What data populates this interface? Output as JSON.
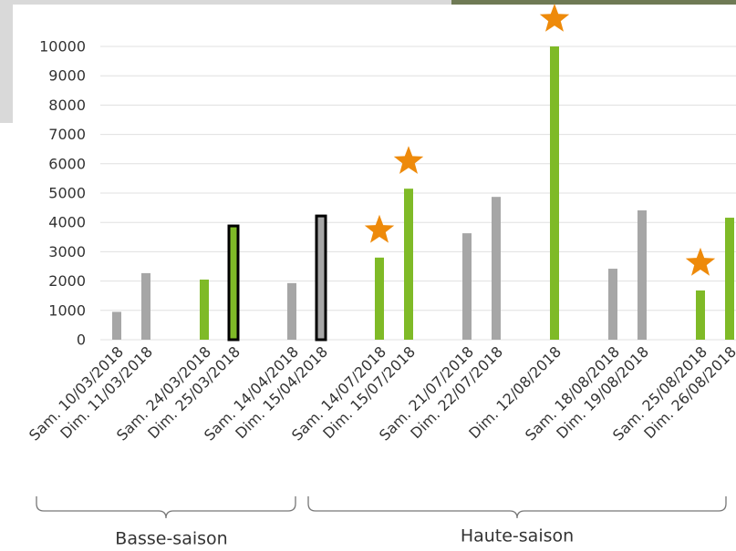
{
  "chart_data": {
    "type": "bar",
    "categories": [
      "Sam. 10/03/2018",
      "Dim. 11/03/2018",
      null,
      "Sam. 24/03/2018",
      "Dim. 25/03/2018",
      null,
      "Sam. 14/04/2018",
      "Dim. 15/04/2018",
      null,
      "Sam. 14/07/2018",
      "Dim. 15/07/2018",
      null,
      "Sam. 21/07/2018",
      "Dim. 22/07/2018",
      null,
      "Dim. 12/08/2018",
      null,
      "Sam. 18/08/2018",
      "Dim. 19/08/2018",
      null,
      "Sam. 25/08/2018",
      "Dim. 26/08/2018"
    ],
    "values": [
      950,
      2270,
      null,
      2050,
      3880,
      null,
      1930,
      4220,
      null,
      2800,
      5150,
      null,
      3630,
      4870,
      null,
      10000,
      null,
      2420,
      4410,
      null,
      1680,
      4160
    ],
    "colors": [
      "#a6a6a6",
      "#a6a6a6",
      null,
      "#7fba27",
      "#7fba27",
      null,
      "#a6a6a6",
      "#a6a6a6",
      null,
      "#7fba27",
      "#7fba27",
      null,
      "#a6a6a6",
      "#a6a6a6",
      null,
      "#7fba27",
      null,
      "#a6a6a6",
      "#a6a6a6",
      null,
      "#7fba27",
      "#7fba27"
    ],
    "outlined": [
      false,
      false,
      false,
      false,
      true,
      false,
      false,
      true,
      false,
      false,
      false,
      false,
      false,
      false,
      false,
      false,
      false,
      false,
      false,
      false,
      false,
      false
    ],
    "starred": [
      false,
      false,
      false,
      false,
      false,
      false,
      false,
      false,
      false,
      true,
      true,
      false,
      false,
      false,
      false,
      true,
      false,
      false,
      false,
      false,
      true,
      false
    ],
    "star_color": "#ee8a0a",
    "ylim": [
      0,
      10000
    ],
    "yticks": [
      0,
      1000,
      2000,
      3000,
      4000,
      5000,
      6000,
      7000,
      8000,
      9000,
      10000
    ],
    "grid": true,
    "groups": [
      "Basse-saison",
      "Haute-saison"
    ]
  }
}
